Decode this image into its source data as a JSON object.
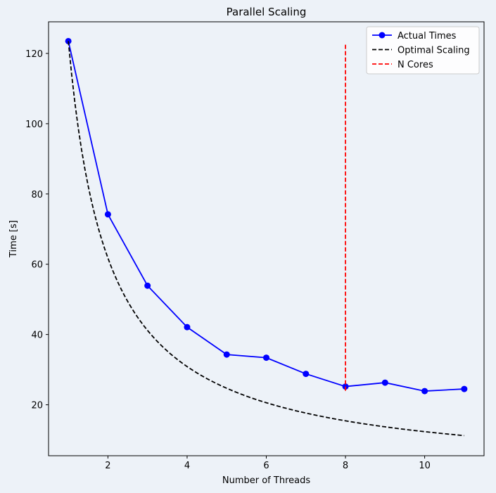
{
  "chart_data": {
    "type": "line",
    "title": "Parallel Scaling",
    "xlabel": "Number of Threads",
    "ylabel": "Time [s]",
    "xlim": [
      0.5,
      11.5
    ],
    "ylim": [
      5.5,
      129
    ],
    "xticks": [
      2,
      4,
      6,
      8,
      10
    ],
    "yticks": [
      20,
      40,
      60,
      80,
      100,
      120
    ],
    "grid": false,
    "legend_position": "top-right",
    "series": [
      {
        "name": "Actual Times",
        "style": "solid-marker",
        "color": "#0000ff",
        "x": [
          1,
          2,
          3,
          4,
          5,
          6,
          7,
          8,
          9,
          10,
          11
        ],
        "y": [
          123.5,
          74.2,
          53.9,
          42.1,
          34.3,
          33.4,
          28.8,
          25.2,
          26.3,
          23.9,
          24.5
        ]
      },
      {
        "name": "Optimal Scaling",
        "style": "dashed",
        "color": "#000000",
        "function": "123.5 / x",
        "x_range": [
          1,
          11
        ]
      },
      {
        "name": "N Cores",
        "style": "dashed",
        "color": "#ff0000",
        "x": [
          8,
          8
        ],
        "y": [
          24,
          123
        ]
      }
    ]
  }
}
